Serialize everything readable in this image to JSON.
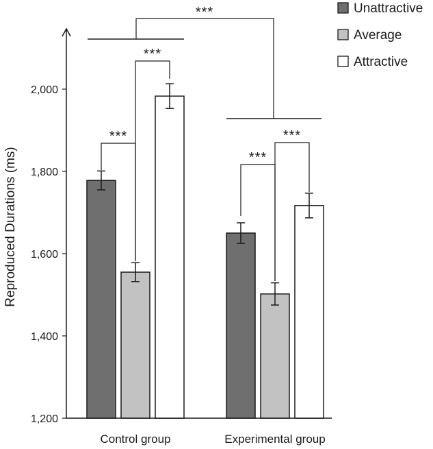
{
  "chart_data": {
    "type": "bar",
    "ylabel": "Reproduced Durations (ms)",
    "ylim": [
      1200,
      2200
    ],
    "yticks": [
      "1,200",
      "1,400",
      "1,600",
      "1,800",
      "2,000"
    ],
    "ytick_values": [
      1200,
      1400,
      1600,
      1800,
      2000
    ],
    "categories": [
      "Control group",
      "Experimental group"
    ],
    "series": [
      {
        "name": "Unattractive",
        "values": [
          1778,
          1650
        ],
        "errors": [
          23,
          25
        ],
        "color": "#6f6f6f"
      },
      {
        "name": "Average",
        "values": [
          1555,
          1502
        ],
        "errors": [
          23,
          27
        ],
        "color": "#c2c2c2"
      },
      {
        "name": "Attractive",
        "values": [
          1983,
          1717
        ],
        "errors": [
          30,
          30
        ],
        "color": "#ffffff"
      }
    ],
    "legend_position": "top-right",
    "significance": [
      {
        "label": "***",
        "between": "Unattractive-Average",
        "group": "Control group"
      },
      {
        "label": "***",
        "between": "Average-Attractive",
        "group": "Control group"
      },
      {
        "label": "***",
        "between": "Unattractive-Average",
        "group": "Experimental group"
      },
      {
        "label": "***",
        "between": "Average-Attractive",
        "group": "Experimental group"
      },
      {
        "label": "***",
        "between": "Control group-Experimental group",
        "group": ""
      }
    ]
  }
}
